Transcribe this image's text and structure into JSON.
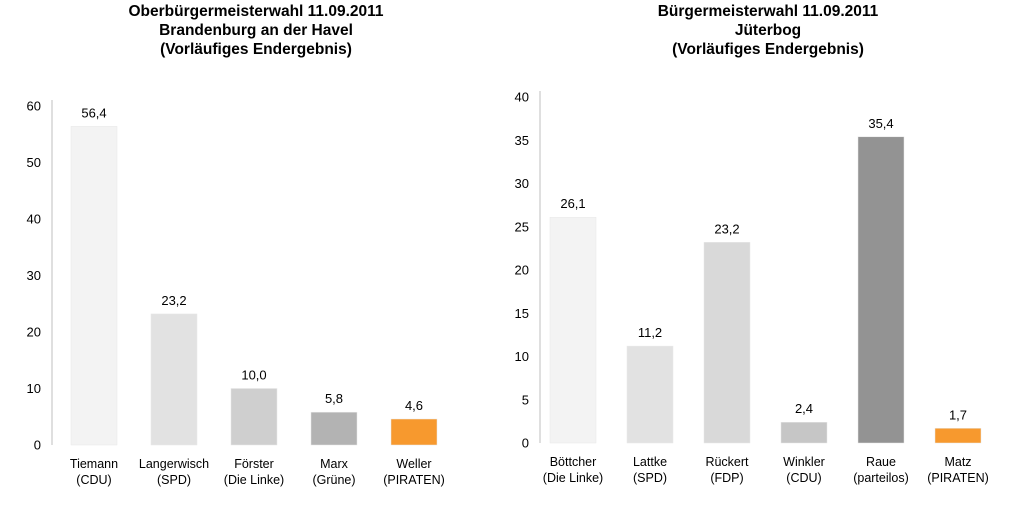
{
  "chart_data": [
    {
      "type": "bar",
      "title_lines": [
        "Oberbürgermeisterwahl 11.09.2011",
        "Brandenburg an der Havel",
        "(Vorläufiges Endergebnis)"
      ],
      "categories": [
        [
          "Tiemann",
          "(CDU)"
        ],
        [
          "Langerwisch",
          "(SPD)"
        ],
        [
          "Förster",
          "(Die Linke)"
        ],
        [
          "Marx",
          "(Grüne)"
        ],
        [
          "Weller",
          "(PIRATEN)"
        ]
      ],
      "values": [
        56.4,
        23.2,
        10.0,
        5.8,
        4.6
      ],
      "value_labels": [
        "56,4",
        "23,2",
        "10,0",
        "5,8",
        "4,6"
      ],
      "bar_colors": [
        "#f3f3f3",
        "#e2e2e2",
        "#cfcfcf",
        "#b3b3b3",
        "#f7992e"
      ],
      "ylim": [
        0,
        60
      ],
      "yticks": [
        0,
        10,
        20,
        30,
        40,
        50,
        60
      ],
      "grid": false,
      "legend": "none"
    },
    {
      "type": "bar",
      "title_lines": [
        "Bürgermeisterwahl 11.09.2011",
        "Jüterbog",
        "(Vorläufiges Endergebnis)"
      ],
      "categories": [
        [
          "Böttcher",
          "(Die Linke)"
        ],
        [
          "Lattke",
          "(SPD)"
        ],
        [
          "Rückert",
          "(FDP)"
        ],
        [
          "Winkler",
          "(CDU)"
        ],
        [
          "Raue",
          "(parteilos)"
        ],
        [
          "Matz",
          "(PIRATEN)"
        ]
      ],
      "values": [
        26.1,
        11.2,
        23.2,
        2.4,
        35.4,
        1.7
      ],
      "value_labels": [
        "26,1",
        "11,2",
        "23,2",
        "2,4",
        "35,4",
        "1,7"
      ],
      "bar_colors": [
        "#f3f3f3",
        "#e2e2e2",
        "#d9d9d9",
        "#c6c6c6",
        "#939393",
        "#f7992e"
      ],
      "ylim": [
        0,
        40
      ],
      "yticks": [
        0,
        5,
        10,
        15,
        20,
        25,
        30,
        35,
        40
      ],
      "grid": false,
      "legend": "none"
    }
  ]
}
